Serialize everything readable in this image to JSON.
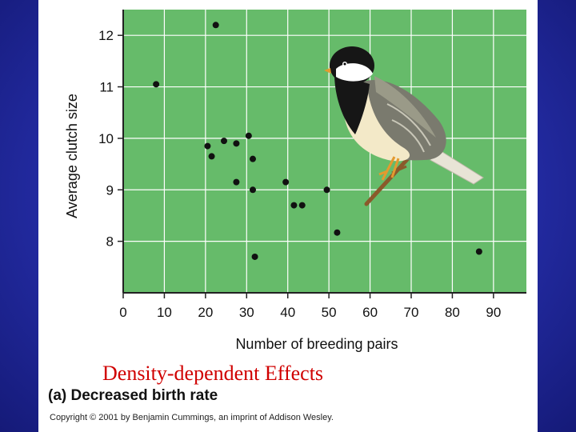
{
  "slide": {
    "title": "Density-dependent Effects",
    "caption": "(a) Decreased birth rate",
    "copyright": "Copyright © 2001 by Benjamin Cummings, an imprint of Addison Wesley.",
    "background_color": "#2a33b0",
    "title_color": "#d00000"
  },
  "illustration": {
    "icon": "chickadee-bird-illustration"
  },
  "chart_data": {
    "type": "scatter",
    "xlabel": "Number of breeding pairs",
    "ylabel": "Average clutch size",
    "xlim": [
      0,
      98
    ],
    "ylim": [
      7.0,
      12.5
    ],
    "x_ticks": [
      0,
      10,
      20,
      30,
      40,
      50,
      60,
      70,
      80,
      90
    ],
    "y_ticks": [
      8,
      9,
      10,
      11,
      12
    ],
    "grid": true,
    "plot_bg_color": "#66bb6a",
    "grid_color": "#ffffff",
    "marker_color": "#111111",
    "series": [
      {
        "points": [
          {
            "x": 8,
            "y": 11.05
          },
          {
            "x": 22.5,
            "y": 12.2
          },
          {
            "x": 20.5,
            "y": 9.85
          },
          {
            "x": 21.5,
            "y": 9.65
          },
          {
            "x": 24.5,
            "y": 9.95
          },
          {
            "x": 27.5,
            "y": 9.9
          },
          {
            "x": 30.5,
            "y": 10.05
          },
          {
            "x": 31.5,
            "y": 9.6
          },
          {
            "x": 27.5,
            "y": 9.15
          },
          {
            "x": 31.5,
            "y": 9.0
          },
          {
            "x": 39.5,
            "y": 9.15
          },
          {
            "x": 41.5,
            "y": 8.7
          },
          {
            "x": 43.5,
            "y": 8.7
          },
          {
            "x": 49.5,
            "y": 9.0
          },
          {
            "x": 52,
            "y": 8.17
          },
          {
            "x": 32,
            "y": 7.7
          },
          {
            "x": 86.5,
            "y": 7.8
          }
        ]
      }
    ]
  }
}
